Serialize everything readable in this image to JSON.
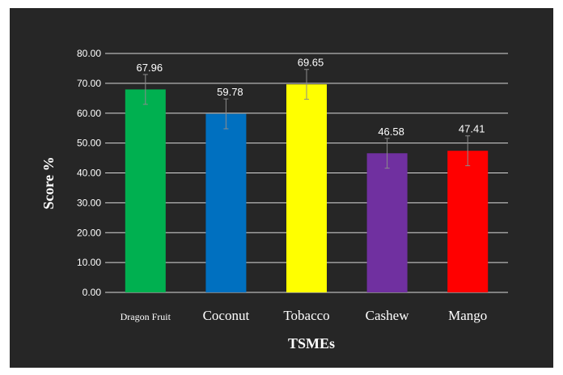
{
  "chart_data": {
    "type": "bar",
    "title": "",
    "xlabel": "TSMEs",
    "ylabel": "Score  %",
    "categories": [
      "Dragon Fruit",
      "Coconut",
      "Tobacco",
      "Cashew",
      "Mango"
    ],
    "values": [
      67.96,
      59.78,
      69.65,
      46.58,
      47.41
    ],
    "value_labels": [
      "67.96",
      "59.78",
      "69.65",
      "46.58",
      "47.41"
    ],
    "error": [
      5,
      5,
      5,
      5,
      5
    ],
    "colors": [
      "#00b050",
      "#0070c0",
      "#ffff00",
      "#7030a0",
      "#ff0000"
    ],
    "ylim": [
      0,
      80
    ],
    "yticks": [
      "0.00",
      "10.00",
      "20.00",
      "30.00",
      "40.00",
      "50.00",
      "60.00",
      "70.00",
      "80.00"
    ],
    "grid": true,
    "legend": "none",
    "background": "#262626"
  }
}
